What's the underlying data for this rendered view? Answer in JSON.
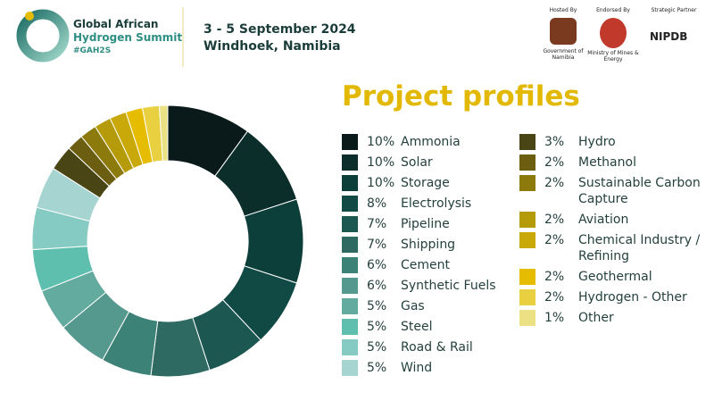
{
  "header": {
    "summit_name_line1": "Global African",
    "summit_name_line2": "Hydrogen Summit",
    "hashtag": "#GAH2S",
    "dates": "3 - 5 September 2024",
    "location": "Windhoek, Namibia",
    "hosted_by": "Hosted By",
    "host": "Government of Namibia",
    "endorsed_by": "Endorsed By",
    "endorser": "Ministry of Mines & Energy",
    "strategic_partner": "Strategic Partner",
    "partner": "NIPDB"
  },
  "chart_data": {
    "type": "donut",
    "title": "Project profiles",
    "categories": [
      "Ammonia",
      "Solar",
      "Storage",
      "Electrolysis",
      "Pipeline",
      "Shipping",
      "Cement",
      "Synthetic Fuels",
      "Gas",
      "Steel",
      "Road & Rail",
      "Wind",
      "Hydro",
      "Methanol",
      "Sustainable Carbon Capture",
      "Aviation",
      "Chemical Industry / Refining",
      "Geothermal",
      "Hydrogen - Other",
      "Other"
    ],
    "values": [
      10,
      10,
      10,
      8,
      7,
      7,
      6,
      6,
      5,
      5,
      5,
      5,
      3,
      2,
      2,
      2,
      2,
      2,
      2,
      1
    ],
    "value_labels": [
      "10%",
      "10%",
      "10%",
      "8%",
      "7%",
      "7%",
      "6%",
      "6%",
      "5%",
      "5%",
      "5%",
      "5%",
      "3%",
      "2%",
      "2%",
      "2%",
      "2%",
      "2%",
      "2%",
      "1%"
    ],
    "colors": [
      "#0a1a1a",
      "#0c2e2b",
      "#0d3f3a",
      "#114a45",
      "#1d5752",
      "#2e6a62",
      "#3d8277",
      "#55998e",
      "#62ab9e",
      "#5fbfae",
      "#86cbc3",
      "#a6d4d0",
      "#4a4515",
      "#6b5e10",
      "#8d7a0c",
      "#b59a0a",
      "#c9a80a",
      "#e6bc00",
      "#e8d040",
      "#ebe184"
    ]
  }
}
